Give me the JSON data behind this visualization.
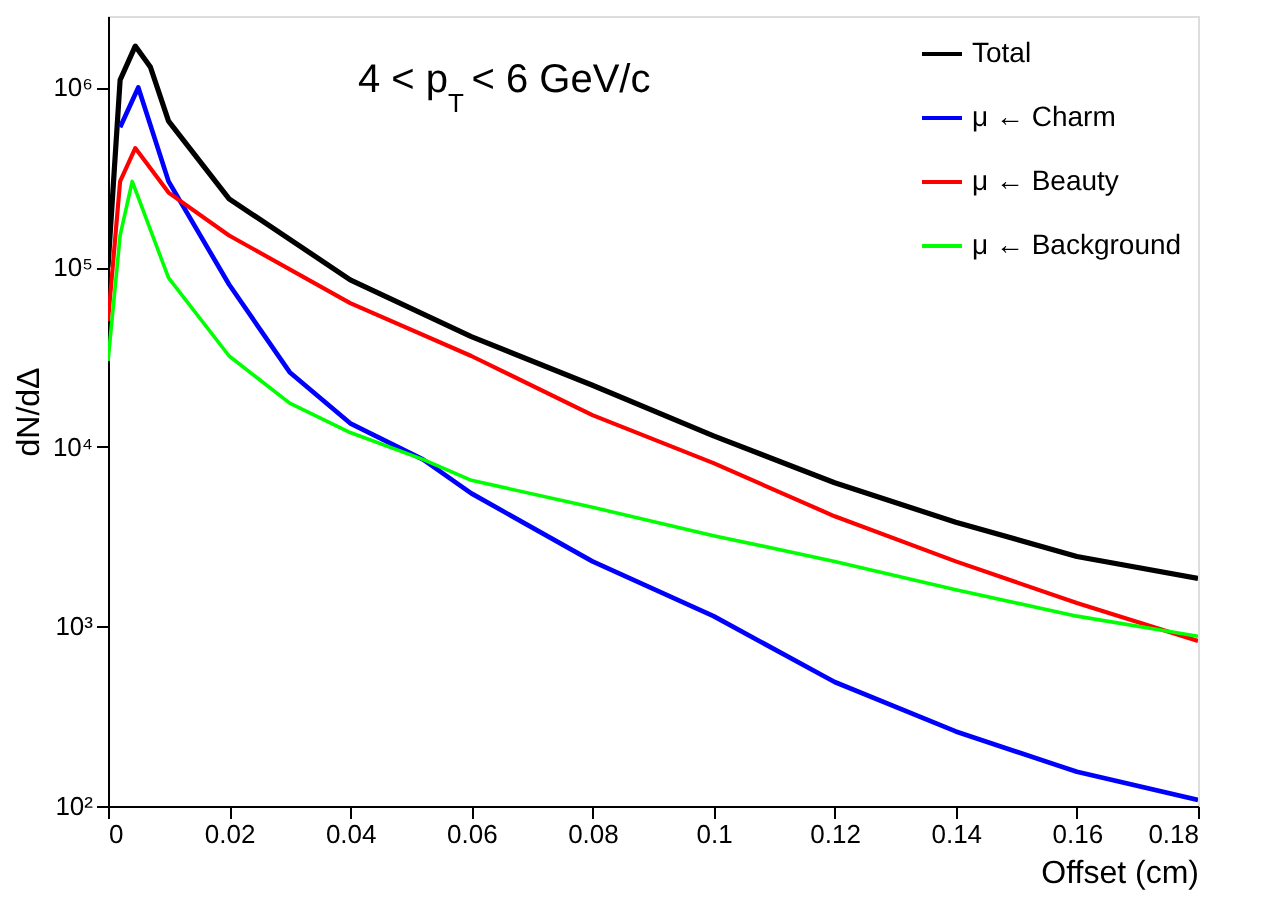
{
  "chart_data": {
    "type": "line",
    "xlabel": "Offset (cm)",
    "ylabel": "dN/dΔ",
    "annotations": [
      "4 < p$_{T}$ < 6 GeV/c"
    ],
    "log": "y",
    "grid": false,
    "legend": "top right",
    "marker": "none",
    "line_style": "solid",
    "xlim": [
      0,
      0.18
    ],
    "xticks": [
      0,
      0.02,
      0.04,
      0.06,
      0.08,
      0.1,
      0.12,
      0.14,
      0.16,
      0.18
    ],
    "ylim": [
      100,
      2500000
    ],
    "yticks": [
      {
        "value": 100,
        "label": "10²"
      },
      {
        "value": 1000,
        "label": "10³"
      },
      {
        "value": 10000,
        "label": "10⁴"
      },
      {
        "value": 100000,
        "label": "10⁵"
      },
      {
        "value": 1000000,
        "label": "10⁶"
      }
    ],
    "series": [
      {
        "name": "Total",
        "color": "#000000",
        "x": [
          0,
          0.002,
          0.0045,
          0.007,
          0.01,
          0.02,
          0.04,
          0.06,
          0.08,
          0.1,
          0.12,
          0.14,
          0.16,
          0.18
        ],
        "values": [
          100000,
          1100000,
          1700000,
          1300000,
          650000,
          240000,
          85000,
          41000,
          22000,
          11500,
          6300,
          3800,
          2450,
          1850
        ]
      },
      {
        "name": "μ ← Charm",
        "color": "#0000ff",
        "x": [
          0.002,
          0.005,
          0.01,
          0.02,
          0.03,
          0.04,
          0.052,
          0.06,
          0.08,
          0.1,
          0.12,
          0.14,
          0.16,
          0.18
        ],
        "values": [
          600000,
          1000000,
          300000,
          80000,
          26000,
          13500,
          8500,
          5500,
          2300,
          1140,
          490,
          260,
          155,
          108
        ]
      },
      {
        "name": "μ ← Beauty",
        "color": "#ff0000",
        "x": [
          0,
          0.002,
          0.0045,
          0.01,
          0.02,
          0.04,
          0.06,
          0.08,
          0.1,
          0.12,
          0.14,
          0.16,
          0.18
        ],
        "values": [
          50000,
          300000,
          460000,
          260000,
          150000,
          63000,
          32000,
          15000,
          8100,
          4100,
          2300,
          1350,
          830
        ]
      },
      {
        "name": "μ ← Background",
        "color": "#00ff00",
        "x": [
          0,
          0.002,
          0.004,
          0.01,
          0.02,
          0.03,
          0.04,
          0.052,
          0.06,
          0.08,
          0.1,
          0.12,
          0.14,
          0.16,
          0.18
        ],
        "values": [
          30000,
          150000,
          300000,
          87000,
          32000,
          17500,
          12000,
          8500,
          6500,
          4600,
          3200,
          2300,
          1600,
          1140,
          880
        ]
      }
    ]
  }
}
